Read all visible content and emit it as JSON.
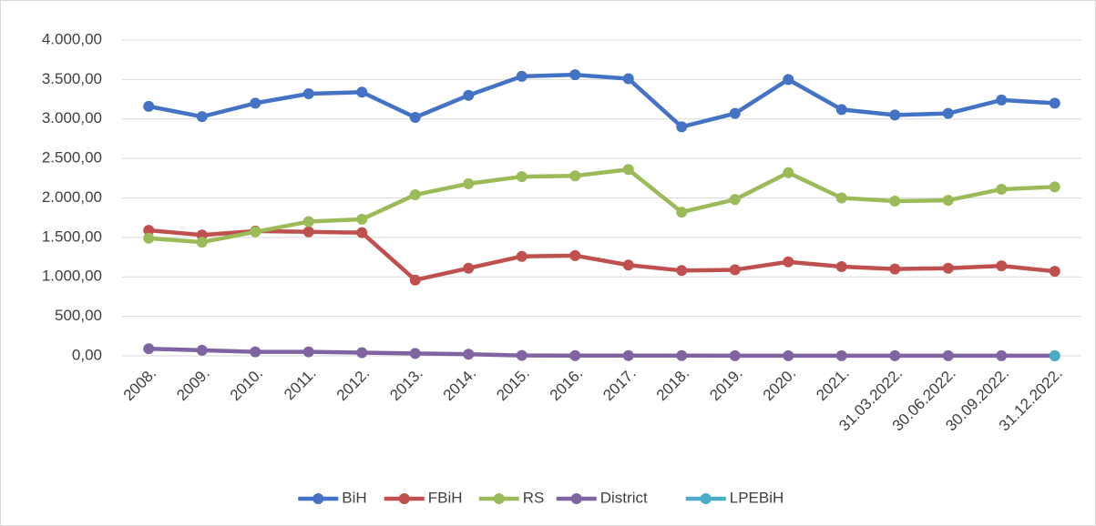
{
  "chart_data": {
    "type": "line",
    "categories": [
      "2008.",
      "2009.",
      "2010.",
      "2011.",
      "2012.",
      "2013.",
      "2014.",
      "2015.",
      "2016.",
      "2017.",
      "2018.",
      "2019.",
      "2020.",
      "2021.",
      "31.03.2022.",
      "30.06.2022.",
      "30.09.2022.",
      "31.12.2022."
    ],
    "series": [
      {
        "name": "BiH",
        "color": "#4472c4",
        "values": [
          3160,
          3030,
          3200,
          3320,
          3340,
          3020,
          3300,
          3540,
          3560,
          3510,
          2900,
          3070,
          3500,
          3120,
          3050,
          3070,
          3240,
          3200
        ]
      },
      {
        "name": "FBiH",
        "color": "#c0504d",
        "values": [
          1590,
          1530,
          1580,
          1570,
          1560,
          960,
          1110,
          1260,
          1270,
          1150,
          1080,
          1090,
          1190,
          1130,
          1100,
          1110,
          1140,
          1070
        ]
      },
      {
        "name": "RS",
        "color": "#9bbb59",
        "values": [
          1490,
          1440,
          1570,
          1700,
          1730,
          2040,
          2180,
          2270,
          2280,
          2360,
          1820,
          1980,
          2320,
          2000,
          1960,
          1970,
          2110,
          2140
        ]
      },
      {
        "name": "District",
        "color": "#8064a2",
        "values": [
          90,
          70,
          50,
          50,
          40,
          30,
          20,
          5,
          3,
          3,
          3,
          2,
          2,
          2,
          2,
          2,
          2,
          2
        ]
      },
      {
        "name": "LPEBiH",
        "color": "#4bacc6",
        "values": [
          null,
          null,
          null,
          null,
          null,
          null,
          null,
          null,
          null,
          null,
          null,
          null,
          null,
          null,
          null,
          null,
          null,
          0
        ]
      }
    ],
    "ylim": [
      0,
      4000
    ],
    "yticks": [
      {
        "value": 0,
        "label": "0,00"
      },
      {
        "value": 500,
        "label": "500,00"
      },
      {
        "value": 1000,
        "label": "1.000,00"
      },
      {
        "value": 1500,
        "label": "1.500,00"
      },
      {
        "value": 2000,
        "label": "2.000,00"
      },
      {
        "value": 2500,
        "label": "2.500,00"
      },
      {
        "value": 3000,
        "label": "3.000,00"
      },
      {
        "value": 3500,
        "label": "3.500,00"
      },
      {
        "value": 4000,
        "label": "4.000,00"
      }
    ],
    "grid": true,
    "legend": "bottom"
  }
}
